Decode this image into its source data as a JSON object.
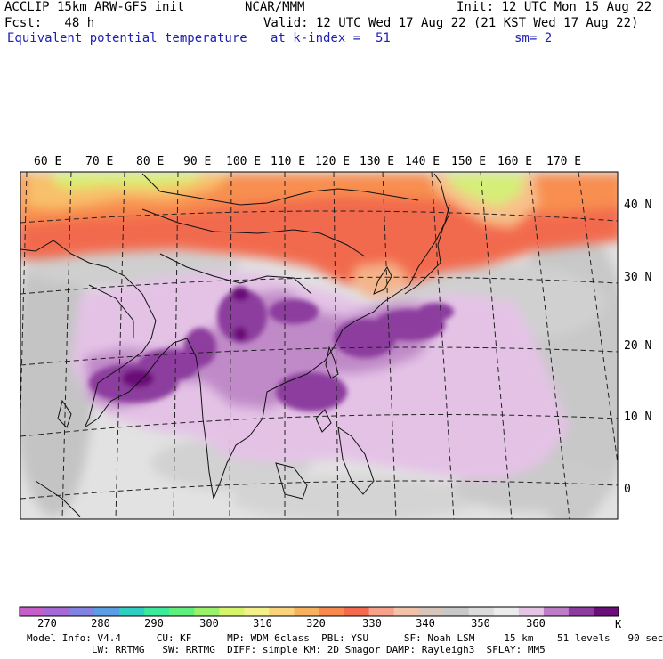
{
  "header": {
    "model": "ACCLIP 15km ARW-GFS init",
    "org": "NCAR/MMM",
    "init": "Init: 12 UTC Mon 15 Aug 22",
    "fcst": "Fcst:   48 h",
    "valid": "Valid: 12 UTC Wed 17 Aug 22 (21 KST Wed 17 Aug 22)",
    "field": "Equivalent potential temperature",
    "level": "at k-index =  51",
    "smooth": "sm= 2"
  },
  "map": {
    "lon_labels": [
      "60 E",
      "70 E",
      "80 E",
      "90 E",
      "100 E",
      "110 E",
      "120 E",
      "130 E",
      "140 E",
      "150 E",
      "160 E",
      "170 E"
    ],
    "lat_labels": [
      "40 N",
      "30 N",
      "20 N",
      "10 N",
      "0"
    ]
  },
  "colorbar": {
    "unit": "K",
    "labels": [
      "270",
      "280",
      "290",
      "300",
      "310",
      "320",
      "330",
      "340",
      "350",
      "360"
    ],
    "colors": [
      "#c65ec9",
      "#a66ad8",
      "#8282e2",
      "#5a9ee6",
      "#2ecfc2",
      "#3bea9a",
      "#5ef07a",
      "#9af26a",
      "#d6f56a",
      "#f4f08a",
      "#f9d47a",
      "#f8b25e",
      "#f78a4e",
      "#f56a4c",
      "#f7a08a",
      "#f4c2a8",
      "#d8c6bc",
      "#c8c8c8",
      "#dcdcdc",
      "#ececec",
      "#e6c4e6",
      "#bc7cc8",
      "#8c3c9e",
      "#6a0e78"
    ]
  },
  "footer": {
    "line1": "Model Info: V4.4      CU: KF      MP: WDM 6class  PBL: YSU      SF: Noah LSM     15 km    51 levels   90 sec",
    "line2": "           LW: RRTMG   SW: RRTMG  DIFF: simple KM: 2D Smagor DAMP: Rayleigh3  SFLAY: MM5"
  }
}
